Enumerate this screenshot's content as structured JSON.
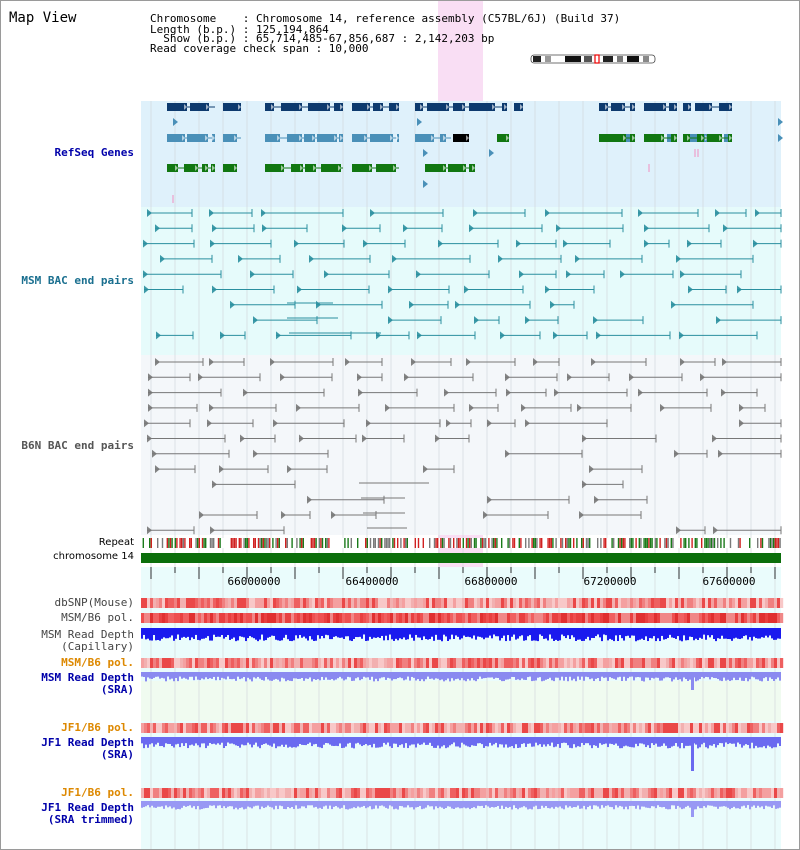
{
  "header": {
    "title": "Map View",
    "line1": "Chromosome    : Chromosome 14, reference assembly (C57BL/6J) (Build 37)",
    "line2": "Length (b.p.) : 125,194,864",
    "line3": "  Show (b.p.) : 65,714,485-67,856,687 : 2,142,203 bp",
    "line4": "Read coverage check span : 10,000"
  },
  "tracks": {
    "refseq": "RefSeq Genes",
    "msm_bac": "MSM BAC end pairs",
    "b6n_bac": "B6N BAC end pairs",
    "repeat": "Repeat",
    "chromosome": "chromosome 14",
    "dbsnp": "dbSNP(Mouse)",
    "msm_pol1": "MSM/B6 pol.",
    "msm_depth_cap": "MSM Read Depth\n(Capillary)",
    "msm_pol2": "MSM/B6 pol.",
    "msm_depth_sra": "MSM Read Depth\n(SRA)",
    "jf1_pol1": "JF1/B6 pol.",
    "jf1_depth_sra": "JF1 Read Depth\n(SRA)",
    "jf1_pol2": "JF1/B6 pol.",
    "jf1_depth_trim": "JF1 Read Depth\n(SRA trimmed)"
  },
  "axis": {
    "ticks": [
      "66000000",
      "66400000",
      "66800000",
      "67200000",
      "67600000"
    ]
  },
  "colors": {
    "refseq_bg": "#dff1fb",
    "msm_bg": "#e6fbfb",
    "b6n_bg": "#f2f6f9",
    "gene_dark": "#0d3a6e",
    "gene_mid": "#4a90b8",
    "gene_green": "#117711",
    "msm_line": "#2a8f9f",
    "b6n_line": "#777777",
    "chromosome": "#0b6e0b",
    "highlight": "#f8d8f2",
    "depth_cap": "#1a1aee",
    "depth_sra": "#8a8af0",
    "label_blue": "#0000aa",
    "label_orange": "#dd8800"
  }
}
